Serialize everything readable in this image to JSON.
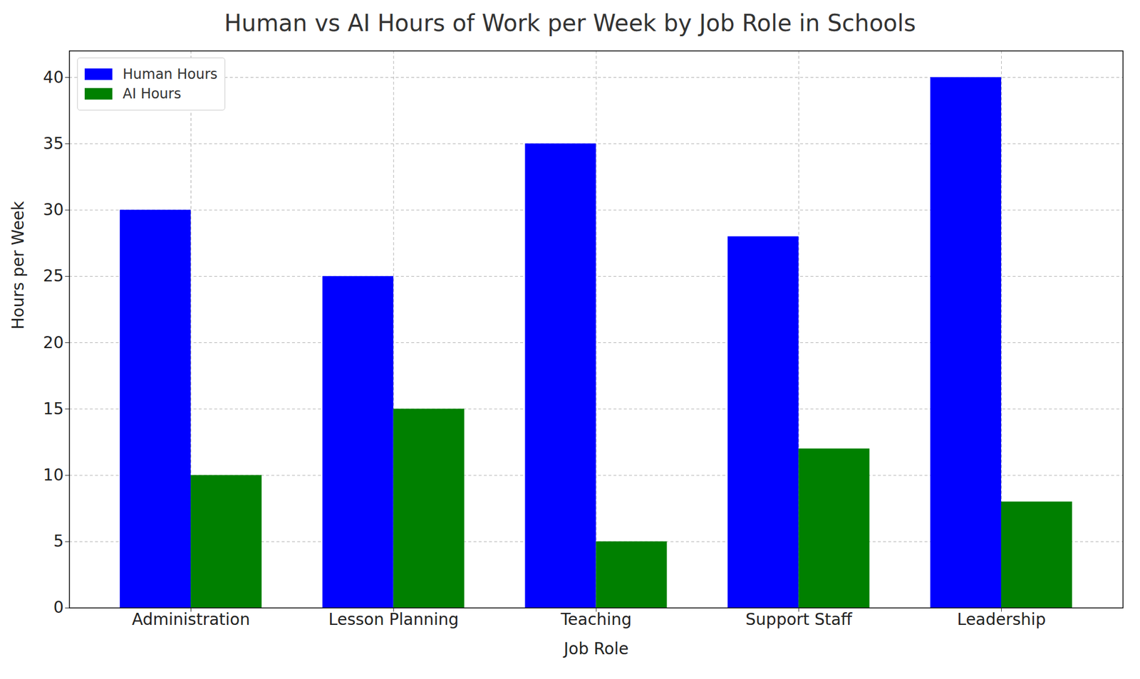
{
  "chart_data": {
    "type": "bar",
    "title": "Human vs AI Hours of Work per Week by Job Role in Schools",
    "x_label": "Job Role",
    "y_label": "Hours per Week",
    "categories": [
      "Administration",
      "Lesson Planning",
      "Teaching",
      "Support Staff",
      "Leadership"
    ],
    "series": [
      {
        "name": "Human Hours",
        "color": "#0000ff",
        "values": [
          30,
          25,
          35,
          28,
          40
        ]
      },
      {
        "name": "AI Hours",
        "color": "#008000",
        "values": [
          10,
          15,
          5,
          12,
          8
        ]
      }
    ],
    "ylim": [
      0,
      42
    ],
    "yticks": [
      0,
      5,
      10,
      15,
      20,
      25,
      30,
      35,
      40
    ],
    "grid": true,
    "legend": "upper left"
  }
}
